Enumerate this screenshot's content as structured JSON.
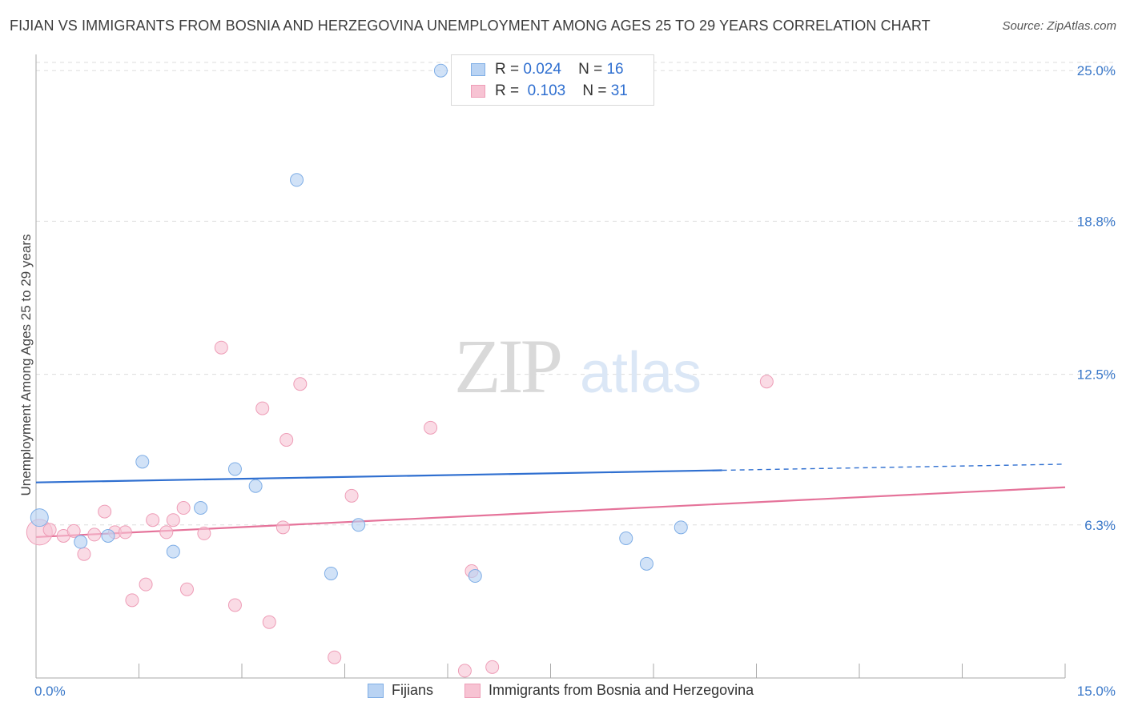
{
  "header": {
    "title": "FIJIAN VS IMMIGRANTS FROM BOSNIA AND HERZEGOVINA UNEMPLOYMENT AMONG AGES 25 TO 29 YEARS CORRELATION CHART",
    "source": "Source: ZipAtlas.com"
  },
  "watermark": {
    "zip": "ZIP",
    "atlas": "atlas"
  },
  "legend": {
    "rows": [
      {
        "r_label": "R =",
        "r_value": "0.024",
        "n_label": "N =",
        "n_value": "16"
      },
      {
        "r_label": "R =",
        "r_value": "0.103",
        "n_label": "N =",
        "n_value": "31"
      }
    ]
  },
  "bottom_legend": {
    "series1": "Fijians",
    "series2": "Immigrants from Bosnia and Herzegovina"
  },
  "colors": {
    "blue_fill": "#b9d3f3",
    "blue_stroke": "#7faee6",
    "blue_line": "#2f6fd0",
    "pink_fill": "#f7c3d3",
    "pink_stroke": "#ee9db7",
    "pink_line": "#e5739a",
    "grid": "#dddddd",
    "tick_text": "#3a78c9"
  },
  "chart_data": {
    "type": "scatter",
    "title": "FIJIAN VS IMMIGRANTS FROM BOSNIA AND HERZEGOVINA UNEMPLOYMENT AMONG AGES 25 TO 29 YEARS CORRELATION CHART",
    "xlabel": "",
    "ylabel": "Unemployment Among Ages 25 to 29 years",
    "xlim": [
      0,
      15
    ],
    "ylim": [
      0,
      25.6
    ],
    "x_tick_labels": [
      "0.0%",
      "15.0%"
    ],
    "y_ticks": [
      6.3,
      12.5,
      18.8,
      25.0
    ],
    "y_tick_labels": [
      "6.3%",
      "12.5%",
      "18.8%",
      "25.0%"
    ],
    "grid": true,
    "legend_position": "top-center",
    "series": [
      {
        "name": "Fijians",
        "r": 0.024,
        "n": 16,
        "points": [
          [
            0.05,
            6.6
          ],
          [
            0.65,
            5.6
          ],
          [
            1.05,
            5.85
          ],
          [
            1.55,
            8.9
          ],
          [
            2.0,
            5.2
          ],
          [
            2.4,
            7.0
          ],
          [
            2.9,
            8.6
          ],
          [
            3.2,
            7.9
          ],
          [
            3.8,
            20.5
          ],
          [
            4.3,
            4.3
          ],
          [
            4.7,
            6.3
          ],
          [
            5.9,
            25.0
          ],
          [
            6.4,
            4.2
          ],
          [
            8.6,
            5.75
          ],
          [
            8.9,
            4.7
          ],
          [
            9.4,
            6.2
          ]
        ],
        "trend": {
          "x0": 0,
          "y0": 8.05,
          "x1": 10.0,
          "y1": 8.55,
          "dash_to_x": 15.0,
          "dash_to_y": 8.8
        }
      },
      {
        "name": "Immigrants from Bosnia and Herzegovina",
        "r": 0.103,
        "n": 31,
        "points": [
          [
            0.05,
            6.0
          ],
          [
            0.2,
            6.1
          ],
          [
            0.4,
            5.85
          ],
          [
            0.55,
            6.05
          ],
          [
            0.7,
            5.1
          ],
          [
            0.85,
            5.9
          ],
          [
            1.0,
            6.85
          ],
          [
            1.15,
            6.0
          ],
          [
            1.3,
            6.0
          ],
          [
            1.4,
            3.2
          ],
          [
            1.6,
            3.85
          ],
          [
            1.7,
            6.5
          ],
          [
            1.9,
            6.0
          ],
          [
            2.0,
            6.5
          ],
          [
            2.15,
            7.0
          ],
          [
            2.2,
            3.65
          ],
          [
            2.45,
            5.95
          ],
          [
            2.7,
            13.6
          ],
          [
            2.9,
            3.0
          ],
          [
            3.3,
            11.1
          ],
          [
            3.4,
            2.3
          ],
          [
            3.6,
            6.2
          ],
          [
            3.65,
            9.8
          ],
          [
            3.85,
            12.1
          ],
          [
            4.35,
            0.85
          ],
          [
            4.6,
            7.5
          ],
          [
            5.75,
            10.3
          ],
          [
            6.25,
            0.3
          ],
          [
            6.35,
            4.4
          ],
          [
            6.65,
            0.45
          ],
          [
            10.65,
            12.2
          ]
        ],
        "trend": {
          "x0": 0,
          "y0": 5.8,
          "x1": 15.0,
          "y1": 7.85
        }
      }
    ]
  }
}
